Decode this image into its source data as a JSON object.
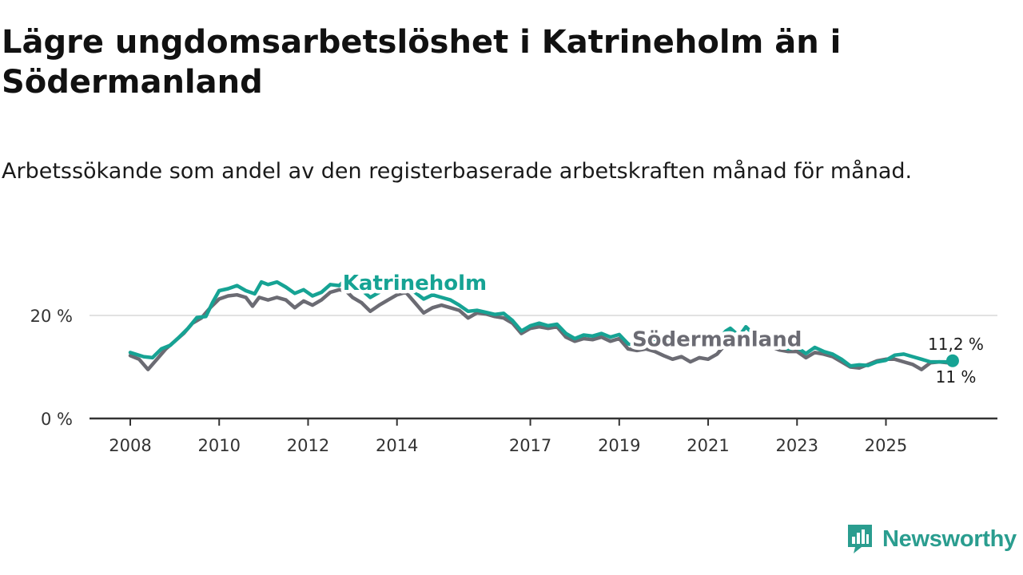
{
  "title": "Lägre ungdomsarbetslöshet i Katrineholm än i Södermanland",
  "subtitle": "Arbetssökande som andel av den registerbaserade arbetskraften månad för månad.",
  "brand": {
    "name": "Newsworthy",
    "icon": "newsworthy-logo-icon"
  },
  "colors": {
    "katrineholm": "#16a394",
    "sodermanland": "#6b6b73",
    "grid": "#d9d9d9",
    "axis": "#333333"
  },
  "chart_data": {
    "type": "line",
    "title": "Lägre ungdomsarbetslöshet i Katrineholm än i Södermanland",
    "xlabel": "",
    "ylabel": "",
    "ylim": [
      0,
      30
    ],
    "xlim": [
      2008,
      2026.6
    ],
    "y_ticks": [
      0,
      20
    ],
    "y_tick_labels": [
      "0 %",
      "20 %"
    ],
    "x_ticks": [
      2008,
      2010,
      2012,
      2014,
      2017,
      2019,
      2021,
      2023,
      2025
    ],
    "x_tick_labels": [
      "2008",
      "2010",
      "2012",
      "2014",
      "2017",
      "2019",
      "2021",
      "2023",
      "2025"
    ],
    "gridlines": "horizontal",
    "series": [
      {
        "name": "Katrineholm",
        "end_label": "11,2 %",
        "points": [
          [
            2008.0,
            12.8
          ],
          [
            2008.3,
            12.0
          ],
          [
            2008.5,
            11.8
          ],
          [
            2008.7,
            13.5
          ],
          [
            2008.9,
            14.2
          ],
          [
            2009.1,
            15.8
          ],
          [
            2009.3,
            17.5
          ],
          [
            2009.5,
            19.6
          ],
          [
            2009.7,
            19.8
          ],
          [
            2009.85,
            22.5
          ],
          [
            2010.0,
            24.8
          ],
          [
            2010.2,
            25.2
          ],
          [
            2010.4,
            25.8
          ],
          [
            2010.6,
            24.8
          ],
          [
            2010.8,
            24.2
          ],
          [
            2010.95,
            26.5
          ],
          [
            2011.1,
            26.0
          ],
          [
            2011.3,
            26.5
          ],
          [
            2011.5,
            25.5
          ],
          [
            2011.7,
            24.3
          ],
          [
            2011.9,
            25.0
          ],
          [
            2012.1,
            23.8
          ],
          [
            2012.3,
            24.5
          ],
          [
            2012.5,
            26.0
          ],
          [
            2012.7,
            25.8
          ],
          [
            2012.85,
            27.0
          ],
          [
            2013.0,
            25.8
          ],
          [
            2013.2,
            25.0
          ],
          [
            2013.4,
            23.5
          ],
          [
            2013.6,
            24.5
          ],
          [
            2013.8,
            26.0
          ],
          [
            2014.0,
            27.5
          ],
          [
            2014.2,
            26.8
          ],
          [
            2014.4,
            24.5
          ],
          [
            2014.6,
            23.2
          ],
          [
            2014.8,
            24.0
          ],
          [
            2015.0,
            23.5
          ],
          [
            2015.2,
            23.0
          ],
          [
            2015.4,
            22.0
          ],
          [
            2015.6,
            20.8
          ],
          [
            2015.8,
            21.0
          ],
          [
            2016.0,
            20.6
          ],
          [
            2016.2,
            20.2
          ],
          [
            2016.4,
            20.4
          ],
          [
            2016.6,
            19.0
          ],
          [
            2016.8,
            17.0
          ],
          [
            2017.0,
            18.0
          ],
          [
            2017.2,
            18.5
          ],
          [
            2017.4,
            18.0
          ],
          [
            2017.6,
            18.3
          ],
          [
            2017.8,
            16.5
          ],
          [
            2018.0,
            15.5
          ],
          [
            2018.2,
            16.2
          ],
          [
            2018.4,
            16.0
          ],
          [
            2018.6,
            16.5
          ],
          [
            2018.8,
            15.8
          ],
          [
            2019.0,
            16.3
          ],
          [
            2019.2,
            14.5
          ],
          [
            2019.4,
            14.0
          ],
          [
            2019.6,
            14.8
          ],
          [
            2019.8,
            15.3
          ],
          [
            2020.0,
            15.0
          ],
          [
            2020.2,
            14.5
          ],
          [
            2020.4,
            15.0
          ],
          [
            2020.6,
            14.0
          ],
          [
            2020.8,
            14.5
          ],
          [
            2021.0,
            14.3
          ],
          [
            2021.2,
            15.0
          ],
          [
            2021.4,
            17.0
          ],
          [
            2021.5,
            17.5
          ],
          [
            2021.7,
            16.0
          ],
          [
            2021.85,
            17.8
          ],
          [
            2022.0,
            16.5
          ],
          [
            2022.2,
            15.5
          ],
          [
            2022.4,
            15.0
          ],
          [
            2022.6,
            14.0
          ],
          [
            2022.8,
            13.5
          ],
          [
            2023.0,
            13.8
          ],
          [
            2023.2,
            12.6
          ],
          [
            2023.4,
            13.8
          ],
          [
            2023.6,
            13.0
          ],
          [
            2023.8,
            12.5
          ],
          [
            2024.0,
            11.5
          ],
          [
            2024.2,
            10.2
          ],
          [
            2024.4,
            10.4
          ],
          [
            2024.6,
            10.3
          ],
          [
            2024.8,
            11.0
          ],
          [
            2025.0,
            11.3
          ],
          [
            2025.2,
            12.3
          ],
          [
            2025.4,
            12.5
          ],
          [
            2025.6,
            12.0
          ],
          [
            2025.8,
            11.5
          ],
          [
            2026.0,
            11.0
          ],
          [
            2026.2,
            11.0
          ],
          [
            2026.4,
            11.0
          ],
          [
            2026.5,
            11.2
          ]
        ]
      },
      {
        "name": "Södermanland",
        "end_label": "11 %",
        "points": [
          [
            2008.0,
            12.2
          ],
          [
            2008.2,
            11.5
          ],
          [
            2008.4,
            9.5
          ],
          [
            2008.6,
            11.5
          ],
          [
            2008.8,
            13.5
          ],
          [
            2009.0,
            15.0
          ],
          [
            2009.2,
            16.5
          ],
          [
            2009.4,
            18.5
          ],
          [
            2009.6,
            19.5
          ],
          [
            2009.8,
            21.5
          ],
          [
            2010.0,
            23.2
          ],
          [
            2010.2,
            23.8
          ],
          [
            2010.4,
            24.0
          ],
          [
            2010.6,
            23.5
          ],
          [
            2010.75,
            21.8
          ],
          [
            2010.9,
            23.5
          ],
          [
            2011.1,
            23.0
          ],
          [
            2011.3,
            23.5
          ],
          [
            2011.5,
            23.0
          ],
          [
            2011.7,
            21.5
          ],
          [
            2011.9,
            22.8
          ],
          [
            2012.1,
            22.0
          ],
          [
            2012.3,
            23.0
          ],
          [
            2012.5,
            24.5
          ],
          [
            2012.7,
            25.0
          ],
          [
            2012.85,
            24.8
          ],
          [
            2013.0,
            23.5
          ],
          [
            2013.2,
            22.5
          ],
          [
            2013.4,
            20.8
          ],
          [
            2013.6,
            22.0
          ],
          [
            2013.8,
            23.0
          ],
          [
            2014.0,
            24.0
          ],
          [
            2014.2,
            24.5
          ],
          [
            2014.4,
            22.5
          ],
          [
            2014.6,
            20.5
          ],
          [
            2014.8,
            21.5
          ],
          [
            2015.0,
            22.0
          ],
          [
            2015.2,
            21.5
          ],
          [
            2015.4,
            21.0
          ],
          [
            2015.6,
            19.5
          ],
          [
            2015.8,
            20.5
          ],
          [
            2016.0,
            20.3
          ],
          [
            2016.2,
            19.8
          ],
          [
            2016.4,
            19.5
          ],
          [
            2016.6,
            18.5
          ],
          [
            2016.8,
            16.5
          ],
          [
            2017.0,
            17.5
          ],
          [
            2017.2,
            17.8
          ],
          [
            2017.4,
            17.5
          ],
          [
            2017.6,
            17.8
          ],
          [
            2017.8,
            15.8
          ],
          [
            2018.0,
            15.0
          ],
          [
            2018.2,
            15.5
          ],
          [
            2018.4,
            15.3
          ],
          [
            2018.6,
            15.8
          ],
          [
            2018.8,
            15.0
          ],
          [
            2019.0,
            15.5
          ],
          [
            2019.2,
            13.5
          ],
          [
            2019.4,
            13.2
          ],
          [
            2019.6,
            13.5
          ],
          [
            2019.8,
            13.0
          ],
          [
            2020.0,
            12.2
          ],
          [
            2020.2,
            11.5
          ],
          [
            2020.4,
            12.0
          ],
          [
            2020.6,
            11.0
          ],
          [
            2020.8,
            11.8
          ],
          [
            2021.0,
            11.5
          ],
          [
            2021.2,
            12.5
          ],
          [
            2021.4,
            14.5
          ],
          [
            2021.5,
            17.0
          ],
          [
            2021.7,
            15.5
          ],
          [
            2021.85,
            16.0
          ],
          [
            2022.0,
            15.5
          ],
          [
            2022.2,
            14.5
          ],
          [
            2022.4,
            14.0
          ],
          [
            2022.6,
            13.3
          ],
          [
            2022.8,
            13.0
          ],
          [
            2023.0,
            13.0
          ],
          [
            2023.2,
            11.8
          ],
          [
            2023.4,
            12.8
          ],
          [
            2023.6,
            12.5
          ],
          [
            2023.8,
            12.0
          ],
          [
            2024.0,
            11.0
          ],
          [
            2024.2,
            10.0
          ],
          [
            2024.4,
            9.8
          ],
          [
            2024.6,
            10.5
          ],
          [
            2024.8,
            11.2
          ],
          [
            2025.0,
            11.5
          ],
          [
            2025.2,
            11.5
          ],
          [
            2025.4,
            11.0
          ],
          [
            2025.6,
            10.5
          ],
          [
            2025.8,
            9.5
          ],
          [
            2026.0,
            10.8
          ],
          [
            2026.2,
            11.0
          ],
          [
            2026.4,
            10.8
          ],
          [
            2026.5,
            11.0
          ]
        ]
      }
    ],
    "annotations": [
      {
        "text": "Katrineholm",
        "series": "Katrineholm",
        "x": 2014.4,
        "y": 25.0
      },
      {
        "text": "Södermanland",
        "series": "Södermanland",
        "x": 2021.2,
        "y": 14.0
      }
    ]
  }
}
